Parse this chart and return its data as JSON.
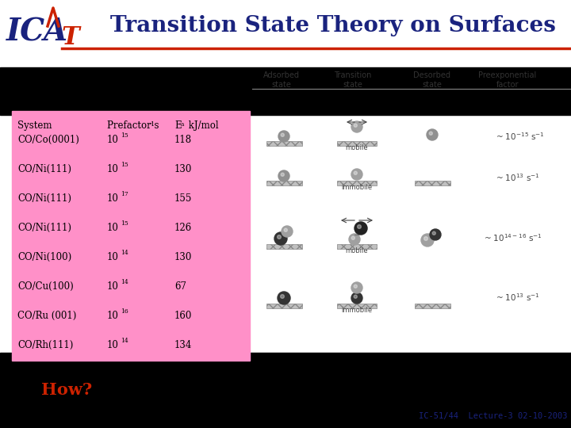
{
  "title": "Transition State Theory on Surfaces",
  "table_systems": [
    "CO/Co(0001)",
    "CO/Ni(111)",
    "CO/Ni(111)",
    "CO/Ni(111)",
    "CO/Ni(100)",
    "CO/Cu(100)",
    "CO/Ru (001)",
    "CO/Rh(111)"
  ],
  "table_prefactors": [
    15,
    15,
    17,
    15,
    14,
    14,
    16,
    14
  ],
  "table_ea": [
    "118",
    "130",
    "155",
    "126",
    "130",
    "67",
    "160",
    "134"
  ],
  "diagram_col_headers": [
    "Adsorbed\nstate",
    "Transition\nstate",
    "Desorbed\nstate",
    "Preexponential\nfactor"
  ],
  "preexp_labels": [
    "~ 10⁻¹⁵ s⁻¹",
    "~ 10¹³ s⁻¹",
    "~ 10¹⁴⁻¹⁶ s⁻¹",
    "~ 10¹³ s⁻¹"
  ],
  "title_color": "#1a237e",
  "footer_text": "IC-51/44  Lecture-3 02-10-2003",
  "footer_color": "#1a237e",
  "how_color": "#cc2200",
  "logo_blue": "#1a237e",
  "logo_red": "#cc2200",
  "pink_color": "#FF90C8",
  "black_color": "#000000",
  "diag_text_color": "#555555"
}
